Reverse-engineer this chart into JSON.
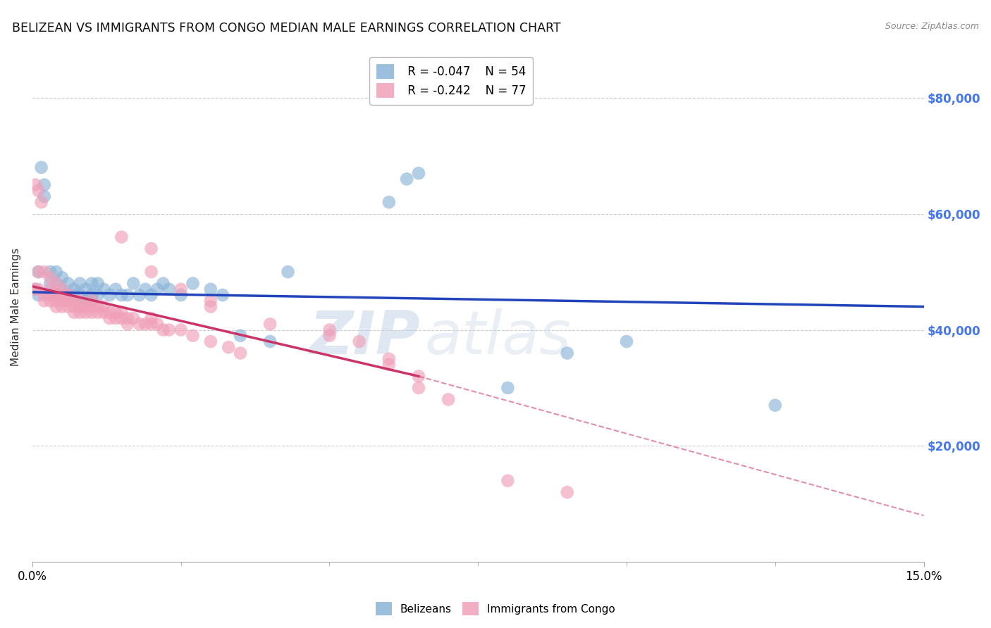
{
  "title": "BELIZEAN VS IMMIGRANTS FROM CONGO MEDIAN MALE EARNINGS CORRELATION CHART",
  "source": "Source: ZipAtlas.com",
  "ylabel": "Median Male Earnings",
  "y_tick_values": [
    80000,
    60000,
    40000,
    20000
  ],
  "y_tick_labels": [
    "$80,000",
    "$60,000",
    "$40,000",
    "$20,000"
  ],
  "xlim": [
    0.0,
    0.15
  ],
  "ylim": [
    0,
    88000
  ],
  "watermark_zip": "ZIP",
  "watermark_atlas": "atlas",
  "belizean_R": "-0.047",
  "belizean_N": "54",
  "congo_R": "-0.242",
  "congo_N": "77",
  "belizean_color": "#8ab4d8",
  "congo_color": "#f0a0b8",
  "line_belizean_color": "#2244bb",
  "line_congo_color": "#cc3366",
  "belizean_x": [
    0.0005,
    0.001,
    0.001,
    0.0015,
    0.002,
    0.002,
    0.003,
    0.003,
    0.003,
    0.004,
    0.004,
    0.004,
    0.005,
    0.005,
    0.005,
    0.006,
    0.006,
    0.007,
    0.007,
    0.008,
    0.008,
    0.009,
    0.009,
    0.01,
    0.01,
    0.01,
    0.011,
    0.011,
    0.012,
    0.013,
    0.014,
    0.015,
    0.016,
    0.017,
    0.018,
    0.019,
    0.02,
    0.021,
    0.022,
    0.023,
    0.025,
    0.027,
    0.03,
    0.032,
    0.035,
    0.04,
    0.043,
    0.06,
    0.063,
    0.065,
    0.08,
    0.09,
    0.1,
    0.125
  ],
  "belizean_y": [
    47000,
    50000,
    46000,
    68000,
    65000,
    63000,
    50000,
    48000,
    46000,
    50000,
    48000,
    46000,
    49000,
    47000,
    46000,
    48000,
    46000,
    47000,
    46000,
    48000,
    46000,
    47000,
    45000,
    48000,
    46000,
    45000,
    48000,
    46000,
    47000,
    46000,
    47000,
    46000,
    46000,
    48000,
    46000,
    47000,
    46000,
    47000,
    48000,
    47000,
    46000,
    48000,
    47000,
    46000,
    39000,
    38000,
    50000,
    62000,
    66000,
    67000,
    30000,
    36000,
    38000,
    27000
  ],
  "congo_x": [
    0.0003,
    0.0005,
    0.001,
    0.001,
    0.001,
    0.0015,
    0.002,
    0.002,
    0.002,
    0.003,
    0.003,
    0.003,
    0.003,
    0.004,
    0.004,
    0.004,
    0.004,
    0.005,
    0.005,
    0.005,
    0.005,
    0.006,
    0.006,
    0.006,
    0.007,
    0.007,
    0.007,
    0.008,
    0.008,
    0.008,
    0.009,
    0.009,
    0.01,
    0.01,
    0.01,
    0.011,
    0.011,
    0.012,
    0.012,
    0.013,
    0.013,
    0.014,
    0.014,
    0.015,
    0.015,
    0.016,
    0.016,
    0.017,
    0.018,
    0.019,
    0.02,
    0.02,
    0.021,
    0.022,
    0.023,
    0.025,
    0.027,
    0.03,
    0.033,
    0.035,
    0.015,
    0.02,
    0.02,
    0.025,
    0.03,
    0.03,
    0.04,
    0.05,
    0.05,
    0.055,
    0.06,
    0.06,
    0.065,
    0.065,
    0.07,
    0.08,
    0.09
  ],
  "congo_y": [
    47000,
    65000,
    64000,
    50000,
    47000,
    62000,
    50000,
    46000,
    45000,
    49000,
    47000,
    46000,
    45000,
    48000,
    46000,
    45000,
    44000,
    47000,
    46000,
    45000,
    44000,
    46000,
    45000,
    44000,
    45000,
    44000,
    43000,
    45000,
    44000,
    43000,
    44000,
    43000,
    45000,
    44000,
    43000,
    44000,
    43000,
    44000,
    43000,
    43000,
    42000,
    43000,
    42000,
    43000,
    42000,
    42000,
    41000,
    42000,
    41000,
    41000,
    42000,
    41000,
    41000,
    40000,
    40000,
    40000,
    39000,
    38000,
    37000,
    36000,
    56000,
    54000,
    50000,
    47000,
    45000,
    44000,
    41000,
    40000,
    39000,
    38000,
    35000,
    34000,
    32000,
    30000,
    28000,
    14000,
    12000
  ],
  "grid_color": "#cccccc",
  "background_color": "#ffffff",
  "title_color": "#111111",
  "axis_label_color": "#333333",
  "tick_color_right": "#4477ee",
  "title_fontsize": 12.5,
  "label_fontsize": 11,
  "tick_fontsize": 11,
  "source_fontsize": 9
}
